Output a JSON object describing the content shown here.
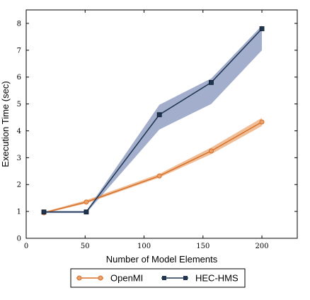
{
  "chart_data": {
    "type": "line",
    "title": "",
    "xlabel": "Number of Model Elements",
    "ylabel": "Execution Time (sec)",
    "xlim": [
      0,
      230
    ],
    "ylim": [
      0,
      8.5
    ],
    "xticks": [
      0,
      50,
      100,
      150,
      200
    ],
    "yticks": [
      0,
      1,
      2,
      3,
      4,
      5,
      6,
      7,
      8
    ],
    "grid": false,
    "legend_position": "bottom-center",
    "series": [
      {
        "name": "OpenMI",
        "color": "#d8702a",
        "band_color": "#e8a36a",
        "marker": "circle",
        "x": [
          15,
          51,
          113,
          157,
          200
        ],
        "y": [
          0.95,
          1.35,
          2.32,
          3.25,
          4.33
        ],
        "lower": [
          0.92,
          1.3,
          2.26,
          3.13,
          4.18
        ],
        "upper": [
          0.98,
          1.42,
          2.4,
          3.38,
          4.48
        ]
      },
      {
        "name": "HEC-HMS",
        "color": "#1f3550",
        "band_color": "#7a8bb5",
        "marker": "square",
        "x": [
          15,
          51,
          113,
          157,
          200
        ],
        "y": [
          0.98,
          0.98,
          4.6,
          5.8,
          7.8
        ],
        "lower": [
          0.94,
          0.94,
          4.05,
          5.0,
          7.0
        ],
        "upper": [
          1.02,
          1.02,
          4.97,
          5.95,
          7.92
        ]
      }
    ]
  }
}
